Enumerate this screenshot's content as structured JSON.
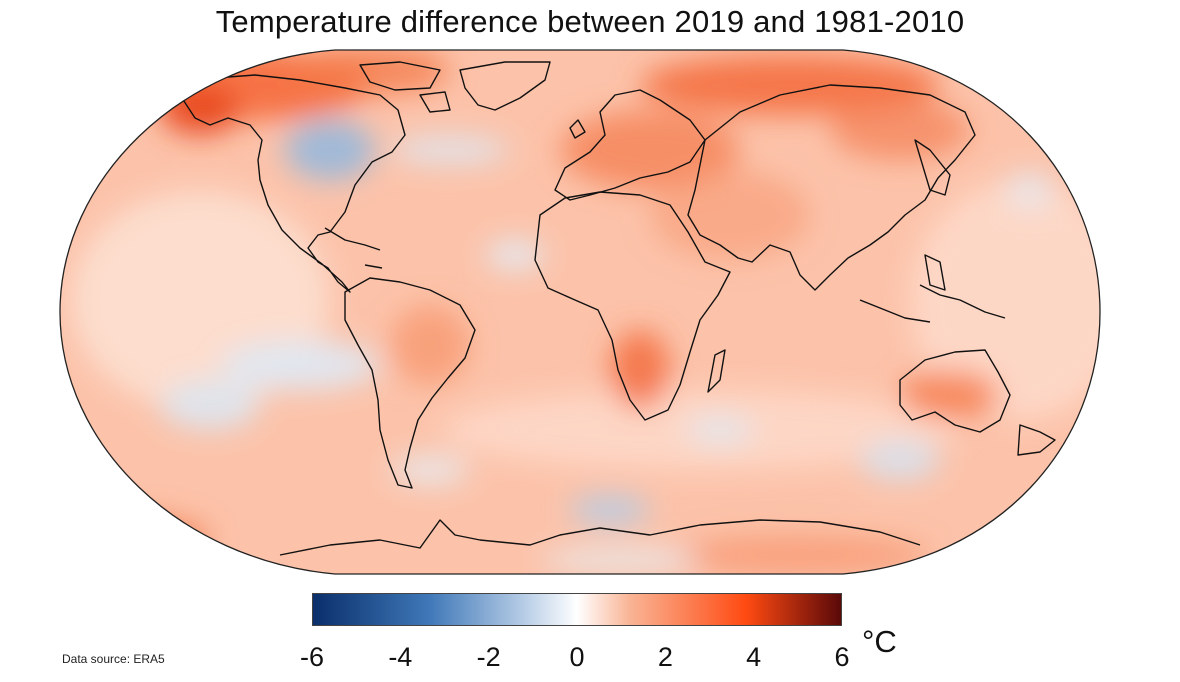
{
  "title": "Temperature difference between 2019 and 1981-2010",
  "source": "Data source: ERA5",
  "colorbar": {
    "unit": "°C",
    "min": -6,
    "max": 6,
    "ticks": [
      "-6",
      "-4",
      "-2",
      "0",
      "2",
      "4",
      "6"
    ],
    "colors": {
      "cold_extreme": "#0a2f6b",
      "cold": "#3f78b8",
      "cool": "#b7cde6",
      "neutral": "#ffffff",
      "warm": "#f9b495",
      "hot": "#ff4a12",
      "hot_extreme": "#5a0909"
    }
  },
  "map": {
    "projection": "Robinson",
    "ocean_base_color": "#fcc6ae"
  }
}
